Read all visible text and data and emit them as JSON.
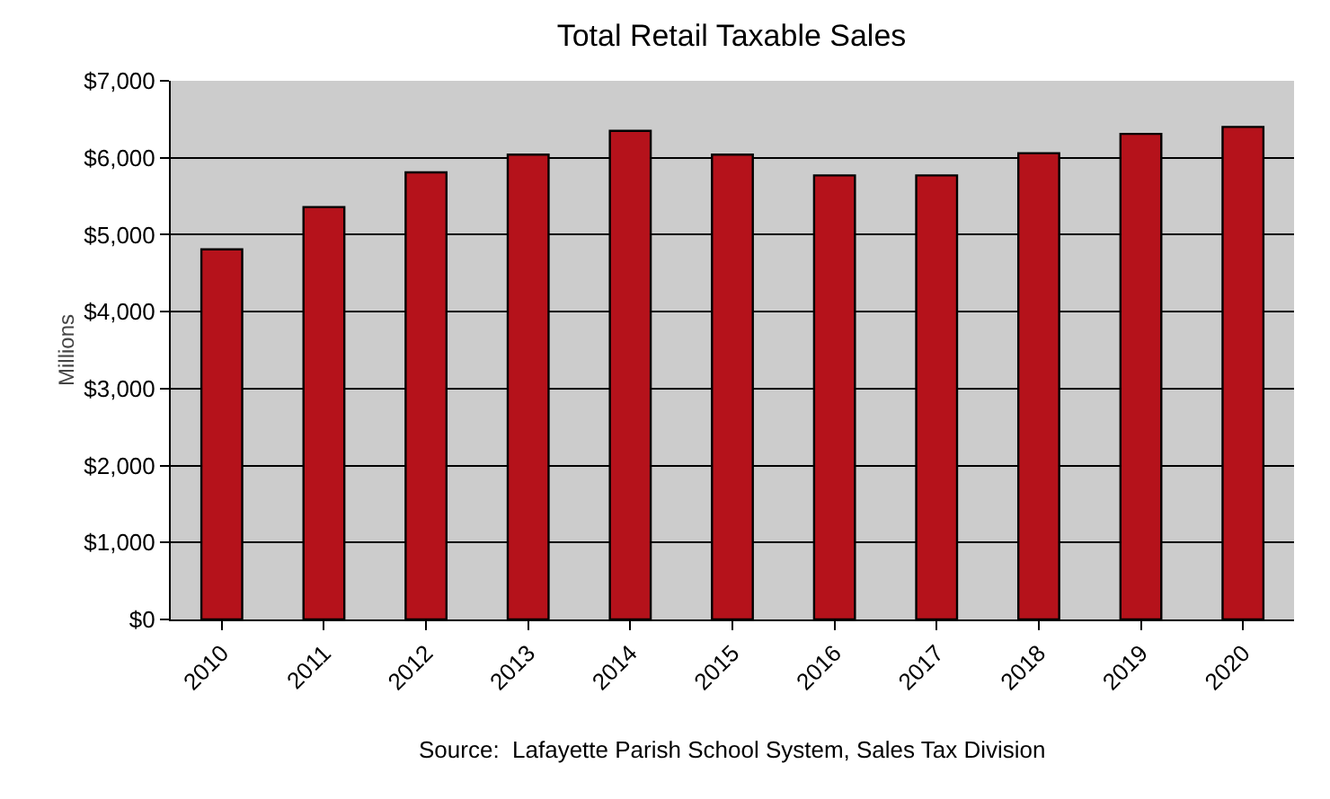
{
  "chart_data": {
    "type": "bar",
    "title": "Total Retail Taxable Sales",
    "ylabel": "Millions",
    "categories": [
      "2010",
      "2011",
      "2012",
      "2013",
      "2014",
      "2015",
      "2016",
      "2017",
      "2018",
      "2019",
      "2020"
    ],
    "values": [
      4810,
      5360,
      5810,
      6040,
      6350,
      6040,
      5770,
      5770,
      6060,
      6310,
      6400
    ],
    "color": "#b5121b",
    "ylim": [
      0,
      7000
    ],
    "yticks": [
      {
        "value": 0,
        "label": "$0"
      },
      {
        "value": 1000,
        "label": "$1,000"
      },
      {
        "value": 2000,
        "label": "$2,000"
      },
      {
        "value": 3000,
        "label": "$3,000"
      },
      {
        "value": 4000,
        "label": "$4,000"
      },
      {
        "value": 5000,
        "label": "$5,000"
      },
      {
        "value": 6000,
        "label": "$6,000"
      },
      {
        "value": 7000,
        "label": "$7,000"
      }
    ],
    "grid": "y",
    "legend": false,
    "annotations": [
      "Source:  Lafayette Parish School System, Sales Tax Division"
    ]
  }
}
